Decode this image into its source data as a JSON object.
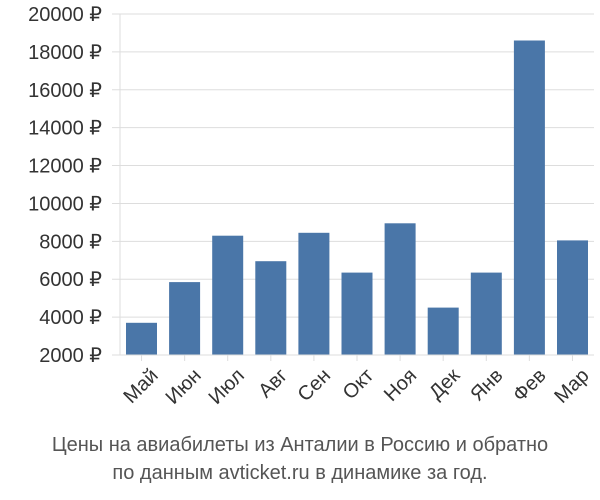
{
  "chart_data": {
    "type": "bar",
    "categories": [
      "Май",
      "Июн",
      "Июл",
      "Авг",
      "Сен",
      "Окт",
      "Ноя",
      "Дек",
      "Янв",
      "Фев",
      "Мар"
    ],
    "values": [
      3700,
      5850,
      8300,
      6950,
      8450,
      6350,
      8950,
      4500,
      6350,
      18600,
      8050
    ],
    "y_ticks": [
      2000,
      4000,
      6000,
      8000,
      10000,
      12000,
      14000,
      16000,
      18000,
      20000
    ],
    "y_tick_labels": [
      "2000 ₽",
      "4000 ₽",
      "6000 ₽",
      "8000 ₽",
      "10000 ₽",
      "12000 ₽",
      "14000 ₽",
      "16000 ₽",
      "18000 ₽",
      "20000 ₽"
    ],
    "ylim": [
      2000,
      20000
    ],
    "grid": true,
    "bar_color": "#4a76a8",
    "grid_color": "#dddddd"
  },
  "caption": {
    "line1": "Цены на авиабилеты из Анталии в Россию и обратно",
    "line2": "по данным avticket.ru в динамике за год."
  }
}
